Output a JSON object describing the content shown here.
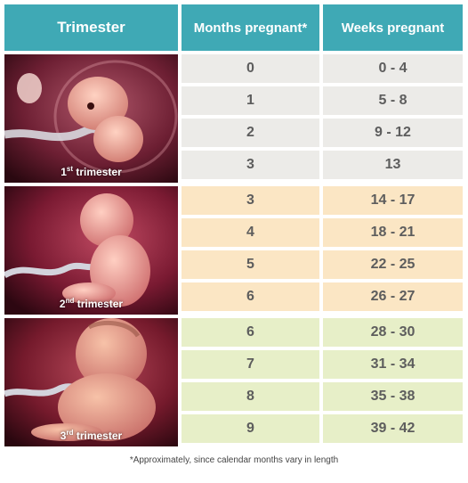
{
  "headers": {
    "trimester": "Trimester",
    "months": "Months pregnant*",
    "weeks": "Weeks pregnant"
  },
  "trimesters": [
    {
      "ordinal": "1",
      "suffix": "st",
      "label": " trimester",
      "color": "#ecebe8",
      "rows": [
        {
          "month": "0",
          "weeks": "0 - 4"
        },
        {
          "month": "1",
          "weeks": "5 - 8"
        },
        {
          "month": "2",
          "weeks": "9 - 12"
        },
        {
          "month": "3",
          "weeks": "13"
        }
      ]
    },
    {
      "ordinal": "2",
      "suffix": "nd",
      "label": " trimester",
      "color": "#fbe6c4",
      "rows": [
        {
          "month": "3",
          "weeks": "14 - 17"
        },
        {
          "month": "4",
          "weeks": "18 - 21"
        },
        {
          "month": "5",
          "weeks": "22 - 25"
        },
        {
          "month": "6",
          "weeks": "26 - 27"
        }
      ]
    },
    {
      "ordinal": "3",
      "suffix": "rd",
      "label": " trimester",
      "color": "#e7efc8",
      "rows": [
        {
          "month": "6",
          "weeks": "28 - 30"
        },
        {
          "month": "7",
          "weeks": "31 - 34"
        },
        {
          "month": "8",
          "weeks": "35 - 38"
        },
        {
          "month": "9",
          "weeks": "39 - 42"
        }
      ]
    }
  ],
  "footnote": "*Approximately, since calendar months vary in length",
  "colors": {
    "header": "#3fa9b5"
  }
}
